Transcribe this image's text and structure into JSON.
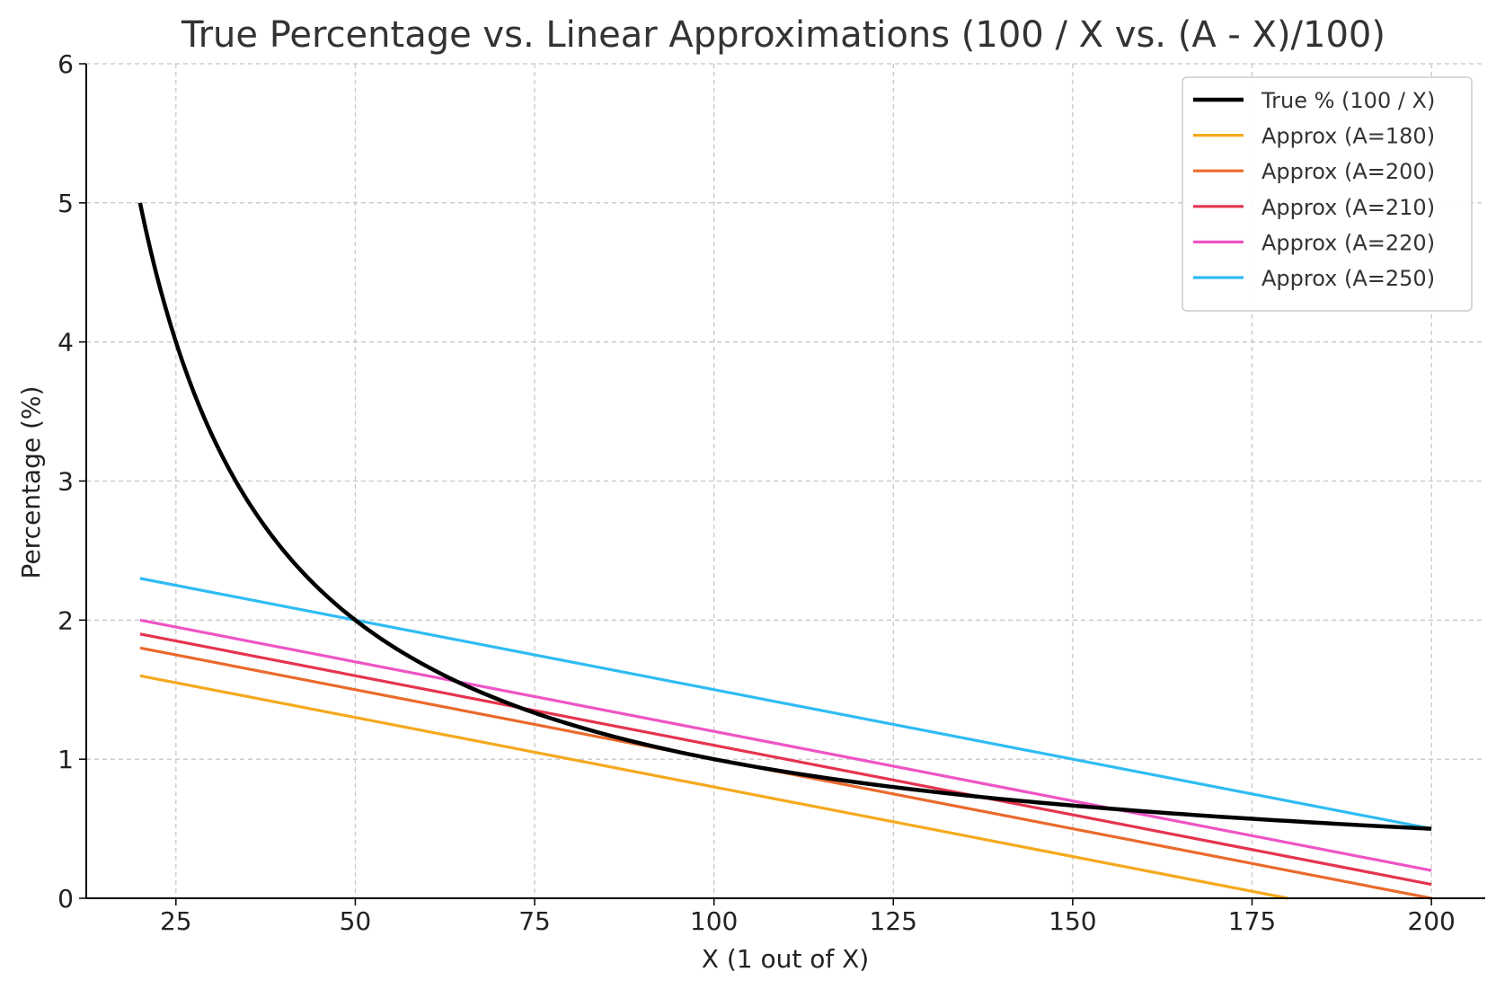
{
  "chart_data": {
    "type": "line",
    "title": "True Percentage vs. Linear Approximations (100 / X vs. (A - X)/100)",
    "xlabel": "X (1 out of X)",
    "ylabel": "Percentage (%)",
    "xlim": [
      12.5,
      207.5
    ],
    "ylim": [
      0,
      6
    ],
    "xticks": [
      25,
      50,
      75,
      100,
      125,
      150,
      175,
      200
    ],
    "yticks": [
      0,
      1,
      2,
      3,
      4,
      5,
      6
    ],
    "grid": true,
    "legend_position": "top-right",
    "series": [
      {
        "name": "True % (100 / X)",
        "color": "#000000",
        "width": 4.5,
        "x": [
          20,
          22,
          24,
          26,
          28,
          30,
          32,
          35,
          38,
          41,
          45,
          50,
          55,
          60,
          65,
          70,
          75,
          80,
          90,
          100,
          110,
          120,
          130,
          140,
          150,
          160,
          170,
          180,
          190,
          200
        ],
        "y": [
          5.0,
          4.545,
          4.167,
          3.846,
          3.571,
          3.333,
          3.125,
          2.857,
          2.632,
          2.439,
          2.222,
          2.0,
          1.818,
          1.667,
          1.538,
          1.429,
          1.333,
          1.25,
          1.111,
          1.0,
          0.909,
          0.833,
          0.769,
          0.714,
          0.667,
          0.625,
          0.588,
          0.556,
          0.526,
          0.5
        ]
      },
      {
        "name": "Approx (A=180)",
        "color": "#f5a91d",
        "width": 3.2,
        "x": [
          20,
          180
        ],
        "y": [
          1.6,
          0.0
        ]
      },
      {
        "name": "Approx (A=200)",
        "color": "#ea6a2c",
        "width": 3.2,
        "x": [
          20,
          200
        ],
        "y": [
          1.8,
          0.0
        ]
      },
      {
        "name": "Approx (A=210)",
        "color": "#e5344f",
        "width": 3.2,
        "x": [
          20,
          200
        ],
        "y": [
          1.9,
          0.1
        ]
      },
      {
        "name": "Approx (A=220)",
        "color": "#ee55c4",
        "width": 3.2,
        "x": [
          20,
          200
        ],
        "y": [
          2.0,
          0.2
        ]
      },
      {
        "name": "Approx (A=250)",
        "color": "#2ebcf4",
        "width": 3.2,
        "x": [
          20,
          200
        ],
        "y": [
          2.3,
          0.5
        ]
      }
    ]
  }
}
